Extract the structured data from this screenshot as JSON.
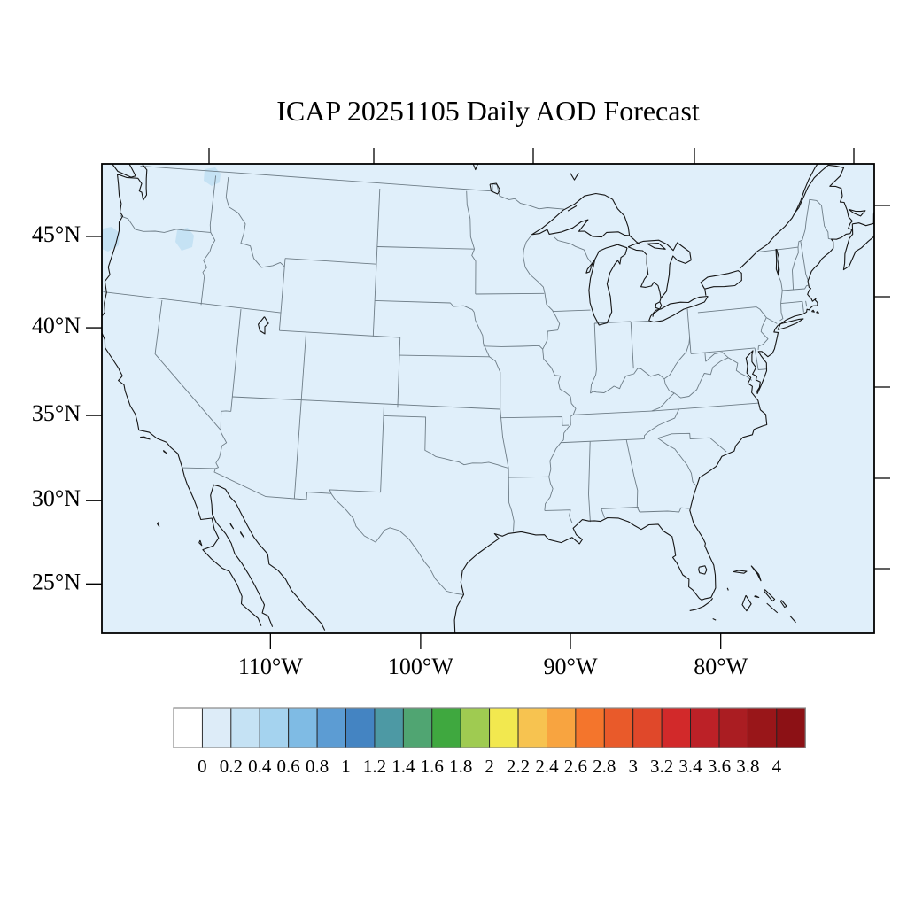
{
  "title": "ICAP 20251105 Daily AOD Forecast",
  "axes": {
    "left": {
      "ticks": [
        {
          "lat": 45,
          "label": "45°N"
        },
        {
          "lat": 40,
          "label": "40°N"
        },
        {
          "lat": 35,
          "label": "35°N"
        },
        {
          "lat": 30,
          "label": "30°N"
        },
        {
          "lat": 25,
          "label": "25°N"
        }
      ]
    },
    "bottom": {
      "ticks": [
        {
          "lon": -110,
          "label": "110°W"
        },
        {
          "lon": -100,
          "label": "100°W"
        },
        {
          "lon": -90,
          "label": "90°W"
        },
        {
          "lon": -80,
          "label": "80°W"
        }
      ]
    }
  },
  "colorbar": {
    "tick_labels": [
      "0",
      "0.2",
      "0.4",
      "0.6",
      "0.8",
      "1",
      "1.2",
      "1.4",
      "1.6",
      "1.8",
      "2",
      "2.2",
      "2.4",
      "2.6",
      "2.8",
      "3",
      "3.2",
      "3.4",
      "3.6",
      "3.8",
      "4"
    ],
    "cell_colors": [
      "#ffffff",
      "#ddecf8",
      "#c5e2f4",
      "#a5d3ef",
      "#7fbbe4",
      "#5c9cd3",
      "#4484c2",
      "#4d99a4",
      "#50a572",
      "#3fa83f",
      "#9fcb51",
      "#f2e84f",
      "#f7c350",
      "#f8a440",
      "#f4752c",
      "#e95a2a",
      "#e0482a",
      "#d2292a",
      "#bc2127",
      "#aa1d22",
      "#991619",
      "#8c1115"
    ]
  },
  "colors": {
    "page_bg": "#ffffff",
    "map_fill": "#e0effa",
    "aod_patch": "#c5e2f4",
    "coastline": "#151515",
    "state_border": "#6d7c86",
    "frame": "#000000",
    "text": "#000000"
  },
  "chart_data": {
    "type": "heatmap",
    "title": "ICAP 20251105 Daily AOD Forecast",
    "variable": "Aerosol Optical Depth (AOD), daily forecast",
    "region": "Continental United States with parts of Canada, Mexico, Bahamas",
    "projection": "conic-style map, approx lat 23.5-50.5N, lon 121-70W visible",
    "x_tick_labels": [
      "110°W",
      "100°W",
      "90°W",
      "80°W"
    ],
    "y_tick_labels": [
      "45°N",
      "40°N",
      "35°N",
      "30°N",
      "25°N"
    ],
    "colorbar_levels": [
      0,
      0.2,
      0.4,
      0.6,
      0.8,
      1,
      1.2,
      1.4,
      1.6,
      1.8,
      2,
      2.2,
      2.4,
      2.6,
      2.8,
      3,
      3.2,
      3.4,
      3.6,
      3.8,
      4
    ],
    "legend_position": "bottom",
    "field_summary": "AOD below 0.2 (palest blue) across essentially the entire domain; three small patches of AOD 0.2-0.4 over the Pacific Northwest",
    "aod_patches": [
      {
        "approx_location": "southern British Columbia, ~49.5N 121.5W",
        "value_range": "0.2-0.4"
      },
      {
        "approx_location": "central Washington, ~47N 120.5W",
        "value_range": "0.2-0.4"
      },
      {
        "approx_location": "offshore Oregon/NW coast, ~45.5N, at map left edge",
        "value_range": "0.2-0.4"
      }
    ]
  }
}
